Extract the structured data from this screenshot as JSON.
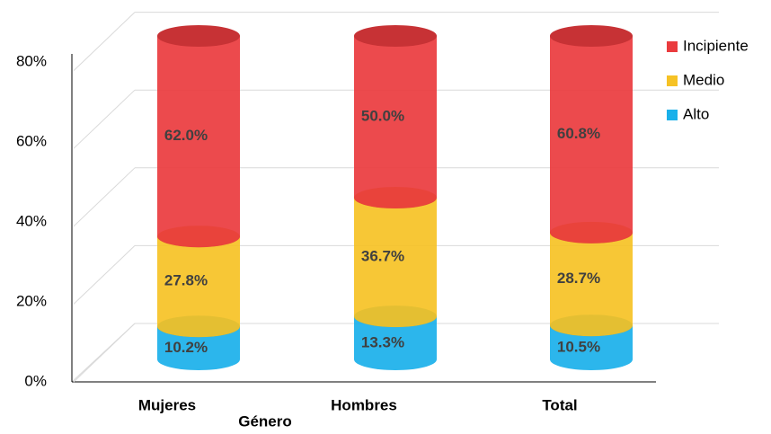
{
  "chart_data": {
    "type": "bar",
    "stacked": true,
    "x_label": "Género",
    "categories": [
      "Mujeres",
      "Hombres",
      "Total"
    ],
    "series": [
      {
        "name": "Alto",
        "color": "#1ab0ea",
        "values": [
          10.2,
          13.3,
          10.5
        ],
        "value_labels": [
          "10.2%",
          "13.3%",
          "10.5%"
        ]
      },
      {
        "name": "Medio",
        "color": "#f6c225",
        "values": [
          27.8,
          36.7,
          28.7
        ],
        "value_labels": [
          "27.8%",
          "36.7%",
          "28.7%"
        ]
      },
      {
        "name": "Incipiente",
        "color": "#ea3b3e",
        "values": [
          62.0,
          50.0,
          60.8
        ],
        "value_labels": [
          "62.0%",
          "50.0%",
          "60.8%"
        ]
      }
    ],
    "ylim": [
      0,
      100
    ],
    "yticks": [
      {
        "value": 0,
        "label": "0%"
      },
      {
        "value": 20,
        "label": "20%"
      },
      {
        "value": 40,
        "label": "40%"
      },
      {
        "value": 60,
        "label": "60%"
      },
      {
        "value": 80,
        "label": "80%"
      }
    ],
    "grid": true,
    "legend": "right"
  }
}
